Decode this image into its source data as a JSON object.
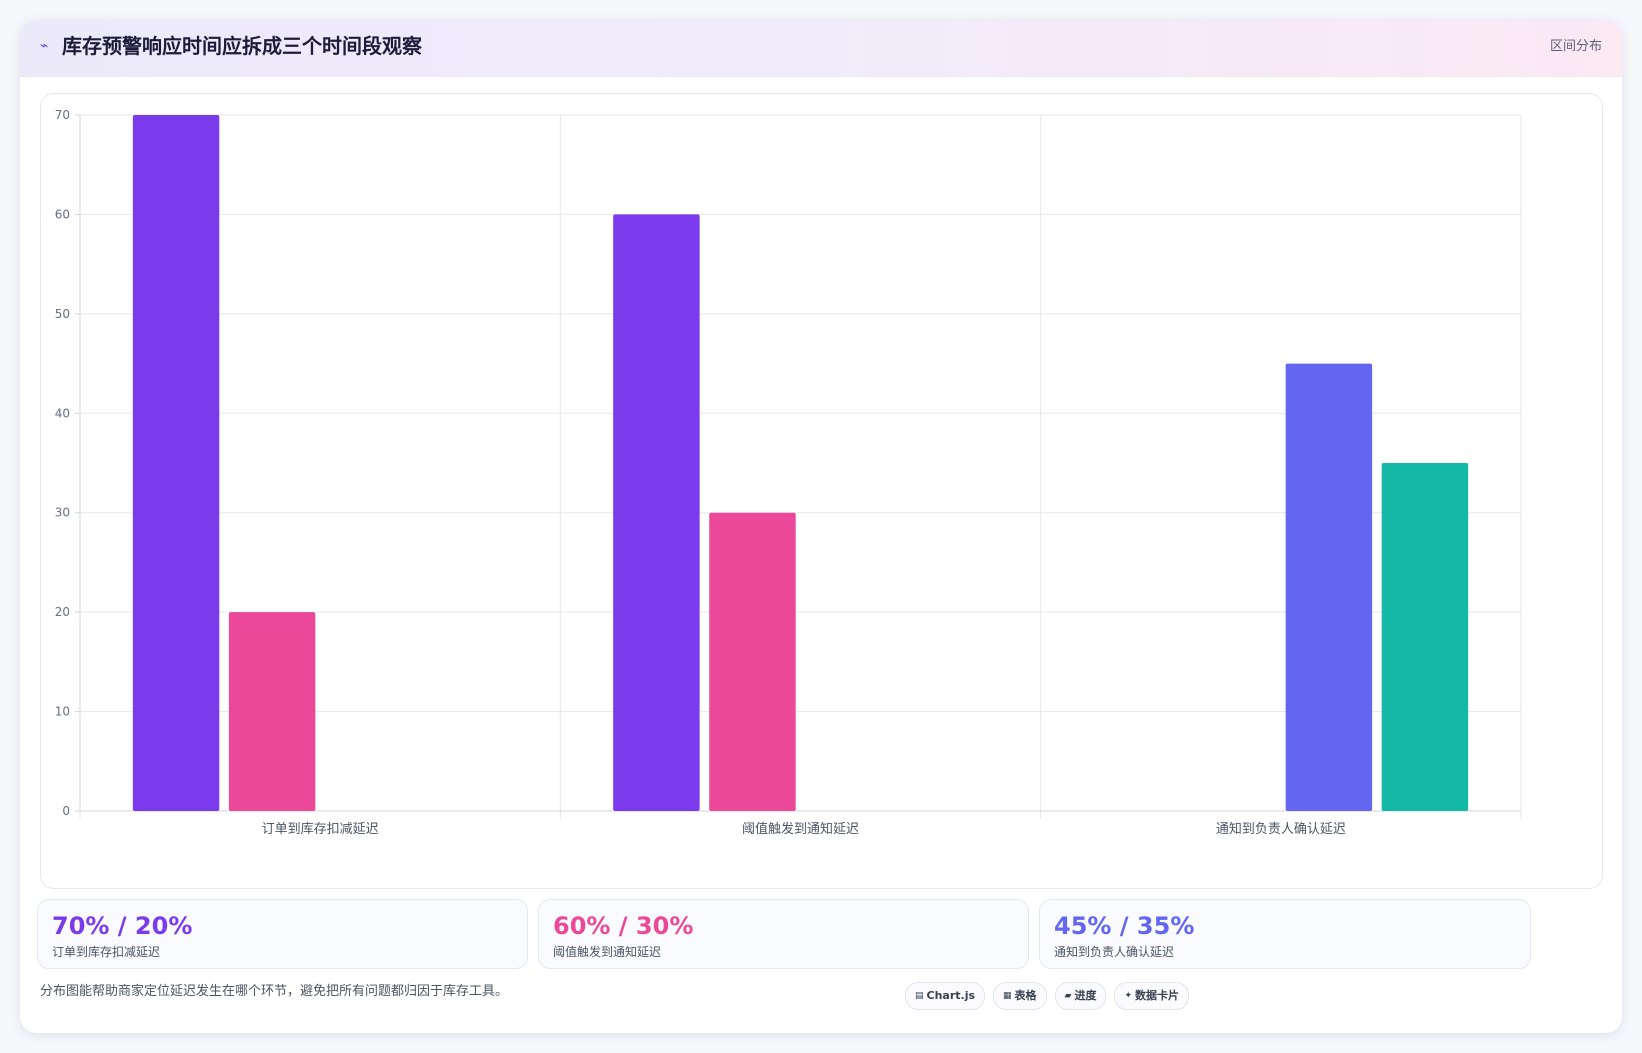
{
  "header": {
    "icon": "sparkline-icon",
    "title": "库存预警响应时间应拆成三个时间段观察",
    "tag": "区间分布"
  },
  "chart_data": {
    "type": "bar",
    "categories": [
      "订单到库存扣减延迟",
      "阈值触发到通知延迟",
      "通知到负责人确认延迟"
    ],
    "series": [
      {
        "values": [
          70,
          60,
          null
        ],
        "color": "#7c3aed"
      },
      {
        "values": [
          20,
          30,
          null
        ],
        "color": "#ec4899"
      },
      {
        "values": [
          null,
          null,
          45
        ],
        "color": "#6366f1"
      },
      {
        "values": [
          null,
          null,
          35
        ],
        "color": "#14b8a6"
      }
    ],
    "yticks": [
      0,
      10,
      20,
      30,
      40,
      50,
      60,
      70
    ],
    "ylim": [
      0,
      70
    ],
    "grid": true,
    "legend": "none"
  },
  "stats": [
    {
      "value": "70% / 20%",
      "label": "订单到库存扣减延迟",
      "color": "#7c3aed"
    },
    {
      "value": "60% / 30%",
      "label": "阈值触发到通知延迟",
      "color": "#ec4899"
    },
    {
      "value": "45% / 35%",
      "label": "通知到负责人确认延迟",
      "color": "#6366f1"
    }
  ],
  "footnote": "分布图能帮助商家定位延迟发生在哪个环节，避免把所有问题都归因于库存工具。",
  "chips": [
    {
      "icon": "chart-icon",
      "glyph": "▤",
      "label": "Chart.js"
    },
    {
      "icon": "table-icon",
      "glyph": "▦",
      "label": "表格"
    },
    {
      "icon": "progress-icon",
      "glyph": "▰",
      "label": "进度"
    },
    {
      "icon": "sparkle-icon",
      "glyph": "✦",
      "label": "数据卡片"
    }
  ]
}
